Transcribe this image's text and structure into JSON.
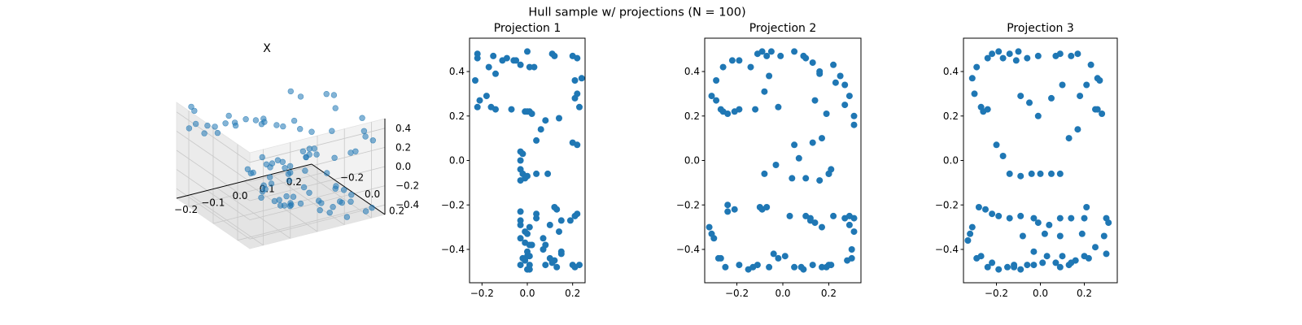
{
  "figure": {
    "suptitle": "Hull sample w/ projections (N = 100)"
  },
  "chart_data": [
    {
      "type": "scatter",
      "projection": "3d",
      "title": "X",
      "xlim": [
        -0.25,
        0.25
      ],
      "ylim": [
        -0.3,
        0.3
      ],
      "zlim": [
        -0.5,
        0.5
      ],
      "xticks": [
        "−0.2",
        "−0.1",
        "0.0",
        "0.1",
        "0.2"
      ],
      "yticks": [
        "−0.2",
        "0.0",
        "0.2"
      ],
      "zticks": [
        "−0.4",
        "−0.2",
        "0.0",
        "0.2",
        "0.4"
      ],
      "points_from_projections": true
    },
    {
      "type": "scatter",
      "title": "Projection 1",
      "xlim": [
        -0.255,
        0.255
      ],
      "ylim": [
        -0.55,
        0.55
      ],
      "xticks": [
        "−0.2",
        "0.0",
        "0.2"
      ],
      "yticks": [
        "0.4",
        "0.2",
        "0.0",
        "−0.2",
        "−0.4"
      ],
      "x": [
        -0.22,
        -0.22,
        -0.23,
        -0.21,
        -0.18,
        -0.15,
        -0.17,
        -0.14,
        -0.11,
        -0.06,
        -0.09,
        -0.05,
        -0.03,
        0.0,
        0.01,
        0.03,
        0.01,
        -0.01,
        -0.22,
        -0.16,
        -0.14,
        -0.07,
        0.0,
        0.02,
        0.11,
        0.12,
        0.2,
        0.22,
        0.21,
        0.24,
        0.22,
        0.21,
        0.23,
        0.14,
        0.08,
        0.06,
        0.04,
        -0.03,
        -0.02,
        -0.03,
        0.04,
        0.09,
        0.2,
        0.22,
        -0.03,
        -0.02,
        0.0,
        -0.01,
        -0.03,
        -0.03,
        -0.03,
        -0.03,
        -0.01,
        0.0,
        -0.03,
        0.01,
        0.0,
        0.04,
        0.04,
        0.12,
        0.13,
        0.15,
        0.1,
        0.14,
        0.07,
        0.08,
        0.15,
        0.19,
        0.21,
        0.22,
        0.01,
        -0.01,
        -0.03,
        0.0,
        0.01,
        0.01,
        -0.02,
        0.0,
        0.1,
        0.08,
        0.12,
        0.15,
        0.13,
        0.2,
        0.23,
        0.21,
        -0.01,
        0.02,
        0.07,
        0.11,
        0.01
      ],
      "y": [
        0.48,
        0.46,
        0.36,
        0.27,
        0.29,
        0.47,
        0.42,
        0.39,
        0.45,
        0.45,
        0.46,
        0.45,
        0.43,
        0.49,
        0.42,
        0.42,
        0.22,
        0.22,
        0.24,
        0.24,
        0.23,
        0.23,
        0.22,
        0.21,
        0.48,
        0.47,
        0.47,
        0.46,
        0.36,
        0.37,
        0.3,
        0.28,
        0.24,
        0.19,
        0.18,
        0.14,
        0.09,
        0.04,
        0.03,
        0.0,
        -0.06,
        -0.06,
        0.08,
        0.07,
        -0.04,
        -0.06,
        -0.07,
        -0.08,
        -0.09,
        -0.23,
        -0.27,
        -0.29,
        -0.32,
        -0.33,
        -0.35,
        -0.38,
        -0.41,
        -0.24,
        -0.26,
        -0.21,
        -0.22,
        -0.27,
        -0.29,
        -0.32,
        -0.35,
        -0.38,
        -0.41,
        -0.27,
        -0.25,
        -0.24,
        -0.43,
        -0.45,
        -0.47,
        -0.49,
        -0.47,
        -0.49,
        -0.44,
        -0.43,
        -0.44,
        -0.47,
        -0.45,
        -0.42,
        -0.48,
        -0.47,
        -0.47,
        -0.48,
        -0.37,
        -0.38,
        -0.4,
        -0.46,
        -0.3
      ],
      "ylabel_hidden": ""
    },
    {
      "type": "scatter",
      "title": "Projection 2",
      "xlim": [
        -0.34,
        0.34
      ],
      "ylim": [
        -0.55,
        0.55
      ],
      "xticks": [
        "−0.2",
        "0.0",
        "0.2"
      ],
      "yticks": [
        "0.4",
        "0.2",
        "0.0",
        "−0.2",
        "−0.4"
      ],
      "x": [
        -0.29,
        -0.26,
        -0.22,
        -0.19,
        -0.14,
        -0.11,
        -0.09,
        -0.07,
        -0.05,
        -0.01,
        0.05,
        0.09,
        0.1,
        0.13,
        0.16,
        0.22,
        0.25,
        0.27,
        -0.31,
        -0.29,
        -0.27,
        -0.26,
        -0.24,
        -0.21,
        -0.19,
        -0.12,
        -0.08,
        -0.06,
        -0.02,
        0.16,
        0.23,
        0.27,
        0.29,
        0.31,
        0.31,
        0.19,
        0.14,
        0.05,
        0.07,
        0.17,
        0.13,
        0.21,
        0.2,
        -0.08,
        -0.1,
        -0.03,
        0.04,
        0.1,
        0.16,
        0.2,
        -0.24,
        -0.21,
        -0.24,
        -0.09,
        -0.07,
        0.03,
        0.1,
        0.12,
        0.17,
        0.22,
        0.27,
        0.29,
        0.31,
        0.31,
        -0.32,
        -0.31,
        -0.3,
        -0.28,
        -0.27,
        -0.25,
        -0.19,
        -0.15,
        -0.11,
        -0.06,
        -0.04,
        0.01,
        0.05,
        0.09,
        0.13,
        0.17,
        0.19,
        0.2,
        0.3,
        0.3,
        0.28,
        -0.02,
        0.12,
        0.14,
        0.29,
        0.08,
        -0.13,
        0.21
      ],
      "y": [
        0.36,
        0.42,
        0.45,
        0.45,
        0.42,
        0.48,
        0.49,
        0.47,
        0.49,
        0.47,
        0.49,
        0.47,
        0.46,
        0.44,
        0.4,
        0.43,
        0.38,
        0.34,
        0.29,
        0.27,
        0.23,
        0.22,
        0.21,
        0.22,
        0.23,
        0.23,
        0.31,
        0.38,
        0.24,
        0.39,
        0.35,
        0.25,
        0.29,
        0.2,
        0.16,
        0.21,
        0.27,
        0.07,
        0.01,
        0.1,
        0.08,
        -0.04,
        -0.06,
        -0.06,
        -0.21,
        -0.02,
        -0.08,
        -0.08,
        -0.09,
        -0.06,
        -0.23,
        -0.22,
        -0.2,
        -0.22,
        -0.21,
        -0.25,
        -0.25,
        -0.27,
        -0.3,
        -0.25,
        -0.26,
        -0.25,
        -0.26,
        -0.32,
        -0.3,
        -0.33,
        -0.35,
        -0.44,
        -0.44,
        -0.48,
        -0.47,
        -0.49,
        -0.47,
        -0.48,
        -0.42,
        -0.43,
        -0.48,
        -0.49,
        -0.47,
        -0.48,
        -0.48,
        -0.47,
        -0.44,
        -0.4,
        -0.45,
        -0.44,
        -0.26,
        -0.28,
        -0.29,
        -0.48,
        -0.48,
        -0.47
      ],
      "ylabel_hidden": ""
    },
    {
      "type": "scatter",
      "title": "Projection 3",
      "xlim": [
        -0.35,
        0.35
      ],
      "ylim": [
        -0.55,
        0.55
      ],
      "xticks": [
        "−0.2",
        "0.0",
        "0.2"
      ],
      "yticks": [
        "0.4",
        "0.2",
        "0.0",
        "−0.2",
        "−0.4"
      ],
      "x": [
        -0.31,
        -0.29,
        -0.24,
        -0.22,
        -0.19,
        -0.17,
        -0.14,
        -0.11,
        -0.1,
        -0.06,
        -0.01,
        0.07,
        0.09,
        0.14,
        0.17,
        0.23,
        0.26,
        0.27,
        -0.3,
        -0.27,
        -0.26,
        -0.24,
        -0.09,
        -0.05,
        -0.01,
        0.05,
        0.1,
        0.18,
        0.21,
        0.25,
        0.26,
        0.28,
        -0.2,
        -0.17,
        -0.14,
        -0.09,
        -0.04,
        0.0,
        0.05,
        0.09,
        0.13,
        0.17,
        -0.28,
        -0.25,
        -0.22,
        -0.19,
        -0.14,
        -0.09,
        -0.03,
        -0.01,
        0.04,
        0.09,
        0.14,
        0.2,
        0.3,
        0.31,
        -0.31,
        -0.32,
        -0.33,
        -0.29,
        -0.27,
        -0.24,
        -0.22,
        -0.19,
        -0.15,
        -0.12,
        -0.09,
        -0.06,
        -0.03,
        0.01,
        0.07,
        0.09,
        0.13,
        0.14,
        0.2,
        0.22,
        0.25,
        0.29,
        0.3,
        -0.03,
        0.1,
        0.16,
        0.19,
        -0.08,
        0.02,
        0.09,
        0.03,
        -0.12,
        0.21
      ],
      "y": [
        0.37,
        0.42,
        0.46,
        0.48,
        0.49,
        0.46,
        0.48,
        0.45,
        0.49,
        0.46,
        0.47,
        0.47,
        0.48,
        0.47,
        0.48,
        0.43,
        0.37,
        0.36,
        0.3,
        0.24,
        0.22,
        0.23,
        0.29,
        0.26,
        0.2,
        0.28,
        0.34,
        0.29,
        0.34,
        0.23,
        0.23,
        0.21,
        0.07,
        0.02,
        -0.06,
        -0.07,
        -0.06,
        -0.06,
        -0.06,
        -0.06,
        0.1,
        0.14,
        -0.21,
        -0.22,
        -0.24,
        -0.25,
        -0.26,
        -0.25,
        -0.26,
        -0.28,
        -0.29,
        -0.26,
        -0.26,
        -0.26,
        -0.26,
        -0.28,
        -0.3,
        -0.33,
        -0.36,
        -0.44,
        -0.43,
        -0.48,
        -0.46,
        -0.49,
        -0.48,
        -0.47,
        -0.49,
        -0.47,
        -0.47,
        -0.46,
        -0.46,
        -0.48,
        -0.47,
        -0.46,
        -0.43,
        -0.44,
        -0.39,
        -0.34,
        -0.42,
        -0.41,
        -0.43,
        -0.45,
        -0.33,
        -0.34,
        -0.33,
        -0.34,
        -0.43,
        -0.48,
        -0.21
      ],
      "ylabel_hidden": ""
    }
  ]
}
